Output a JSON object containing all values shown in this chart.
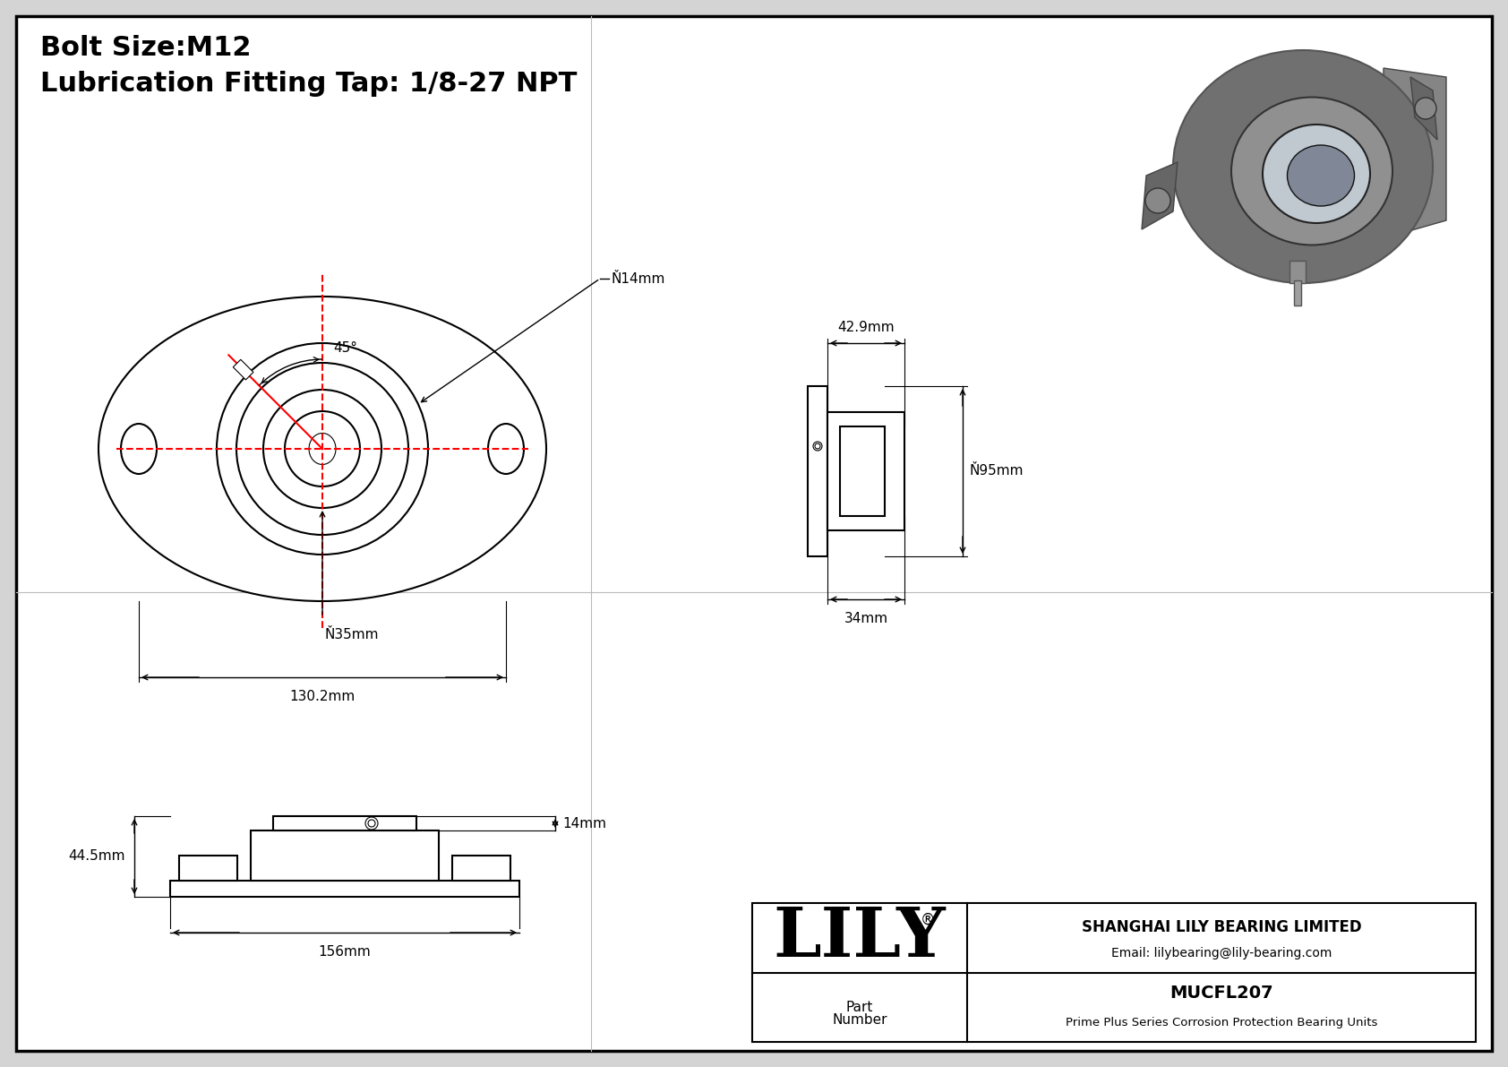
{
  "bg_color": "#d4d4d4",
  "white": "#ffffff",
  "black": "#000000",
  "red": "#ff0000",
  "title_line1": "Bolt Size:M12",
  "title_line2": "Lubrication Fitting Tap: 1/8-27 NPT",
  "dim_phi14": "Ň14mm",
  "dim_phi35": "Ň35mm",
  "dim_130": "130.2mm",
  "dim_phi95": "Ň95mm",
  "dim_42": "42.9mm",
  "dim_34": "34mm",
  "dim_44": "44.5mm",
  "dim_156": "156mm",
  "dim_14r": "14mm",
  "angle_45": "45°",
  "part_num": "MUCFL207",
  "part_desc": "Prime Plus Series Corrosion Protection Bearing Units",
  "company": "SHANGHAI LILY BEARING LIMITED",
  "email": "Email: lilybearing@lily-bearing.com",
  "lily": "LILY",
  "reg": "®",
  "part_lbl_top": "Part",
  "part_lbl_bot": "Number"
}
